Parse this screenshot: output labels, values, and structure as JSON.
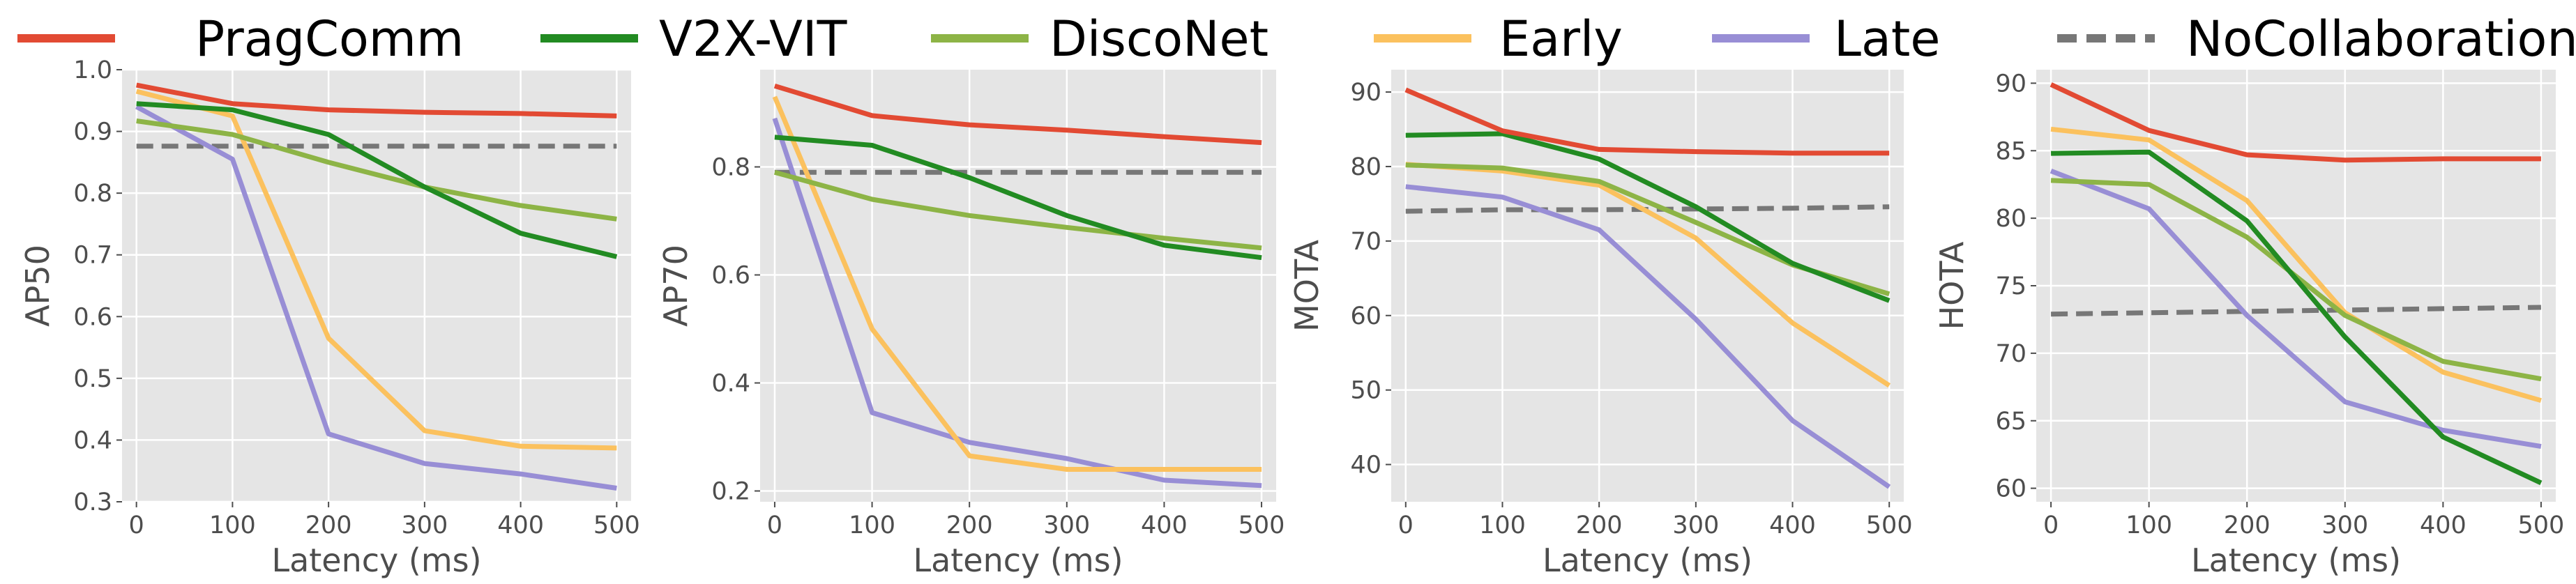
{
  "legend": [
    {
      "name": "PragComm",
      "color": "#e24a33",
      "dashed": false
    },
    {
      "name": "V2X-VIT",
      "color": "#228b22",
      "dashed": false
    },
    {
      "name": "DiscoNet",
      "color": "#8db446",
      "dashed": false
    },
    {
      "name": "Early",
      "color": "#fbc15e",
      "dashed": false
    },
    {
      "name": "Late",
      "color": "#988ed5",
      "dashed": false
    },
    {
      "name": "NoCollaboration",
      "color": "#777777",
      "dashed": true
    }
  ],
  "chart_data": [
    {
      "type": "line",
      "xlabel": "Latency (ms)",
      "ylabel": "AP50",
      "x": [
        0,
        100,
        200,
        300,
        400,
        500
      ],
      "xlim": [
        -15,
        515
      ],
      "ylim": [
        0.3,
        1.0
      ],
      "yticks": [
        0.3,
        0.4,
        0.5,
        0.6,
        0.7,
        0.8,
        0.9,
        1.0
      ],
      "ytick_labels": [
        "0.3",
        "0.4",
        "0.5",
        "0.6",
        "0.7",
        "0.8",
        "0.9",
        "1.0"
      ],
      "series": [
        {
          "name": "PragComm",
          "values": [
            0.975,
            0.945,
            0.935,
            0.931,
            0.929,
            0.925
          ]
        },
        {
          "name": "V2X-VIT",
          "values": [
            0.945,
            0.935,
            0.895,
            0.81,
            0.735,
            0.697
          ]
        },
        {
          "name": "DiscoNet",
          "values": [
            0.917,
            0.895,
            0.85,
            0.81,
            0.78,
            0.758
          ]
        },
        {
          "name": "Early",
          "values": [
            0.965,
            0.925,
            0.565,
            0.415,
            0.39,
            0.387
          ]
        },
        {
          "name": "Late",
          "values": [
            0.94,
            0.855,
            0.41,
            0.362,
            0.345,
            0.322
          ]
        },
        {
          "name": "NoCollaboration",
          "values": [
            0.876,
            0.876,
            0.876,
            0.876,
            0.876,
            0.876
          ]
        }
      ]
    },
    {
      "type": "line",
      "xlabel": "Latency (ms)",
      "ylabel": "AP70",
      "x": [
        0,
        100,
        200,
        300,
        400,
        500
      ],
      "xlim": [
        -15,
        515
      ],
      "ylim": [
        0.18,
        0.98
      ],
      "yticks": [
        0.2,
        0.4,
        0.6,
        0.8
      ],
      "ytick_labels": [
        "0.2",
        "0.4",
        "0.6",
        "0.8"
      ],
      "series": [
        {
          "name": "PragComm",
          "values": [
            0.95,
            0.895,
            0.878,
            0.868,
            0.856,
            0.845
          ]
        },
        {
          "name": "V2X-VIT",
          "values": [
            0.855,
            0.84,
            0.78,
            0.71,
            0.655,
            0.632
          ]
        },
        {
          "name": "DiscoNet",
          "values": [
            0.79,
            0.74,
            0.71,
            0.688,
            0.668,
            0.65
          ]
        },
        {
          "name": "Early",
          "values": [
            0.93,
            0.5,
            0.265,
            0.24,
            0.24,
            0.24
          ]
        },
        {
          "name": "Late",
          "values": [
            0.89,
            0.345,
            0.29,
            0.26,
            0.22,
            0.21
          ]
        },
        {
          "name": "NoCollaboration",
          "values": [
            0.79,
            0.79,
            0.79,
            0.79,
            0.79,
            0.79
          ]
        }
      ]
    },
    {
      "type": "line",
      "xlabel": "Latency (ms)",
      "ylabel": "MOTA",
      "x": [
        0,
        100,
        200,
        300,
        400,
        500
      ],
      "xlim": [
        -15,
        515
      ],
      "ylim": [
        35,
        93
      ],
      "yticks": [
        40,
        50,
        60,
        70,
        80,
        90
      ],
      "ytick_labels": [
        "40",
        "50",
        "60",
        "70",
        "80",
        "90"
      ],
      "series": [
        {
          "name": "PragComm",
          "values": [
            90.3,
            84.8,
            82.3,
            82.0,
            81.8,
            81.8
          ]
        },
        {
          "name": "V2X-VIT",
          "values": [
            84.2,
            84.4,
            81.0,
            74.6,
            67.0,
            62.0
          ]
        },
        {
          "name": "DiscoNet",
          "values": [
            80.2,
            79.8,
            78.0,
            72.5,
            66.8,
            62.9
          ]
        },
        {
          "name": "Early",
          "values": [
            80.3,
            79.4,
            77.5,
            70.4,
            59.0,
            50.6
          ]
        },
        {
          "name": "Late",
          "values": [
            77.3,
            75.9,
            71.5,
            59.5,
            45.9,
            37.0
          ]
        },
        {
          "name": "NoCollaboration",
          "values": [
            74.0,
            74.2,
            74.2,
            74.3,
            74.4,
            74.6
          ]
        }
      ]
    },
    {
      "type": "line",
      "xlabel": "Latency (ms)",
      "ylabel": "HOTA",
      "x": [
        0,
        100,
        200,
        300,
        400,
        500
      ],
      "xlim": [
        -15,
        515
      ],
      "ylim": [
        59,
        91
      ],
      "yticks": [
        60,
        65,
        70,
        75,
        80,
        85,
        90
      ],
      "ytick_labels": [
        "60",
        "65",
        "70",
        "75",
        "80",
        "85",
        "90"
      ],
      "series": [
        {
          "name": "PragComm",
          "values": [
            89.9,
            86.5,
            84.7,
            84.3,
            84.4,
            84.4
          ]
        },
        {
          "name": "V2X-VIT",
          "values": [
            84.8,
            84.9,
            79.8,
            71.2,
            63.8,
            60.4
          ]
        },
        {
          "name": "DiscoNet",
          "values": [
            82.8,
            82.5,
            78.6,
            72.8,
            69.4,
            68.1
          ]
        },
        {
          "name": "Early",
          "values": [
            86.6,
            85.8,
            81.3,
            73.0,
            68.6,
            66.5
          ]
        },
        {
          "name": "Late",
          "values": [
            83.5,
            80.7,
            72.8,
            66.4,
            64.3,
            63.1
          ]
        },
        {
          "name": "NoCollaboration",
          "values": [
            72.9,
            73.0,
            73.1,
            73.2,
            73.3,
            73.4
          ]
        }
      ]
    }
  ]
}
